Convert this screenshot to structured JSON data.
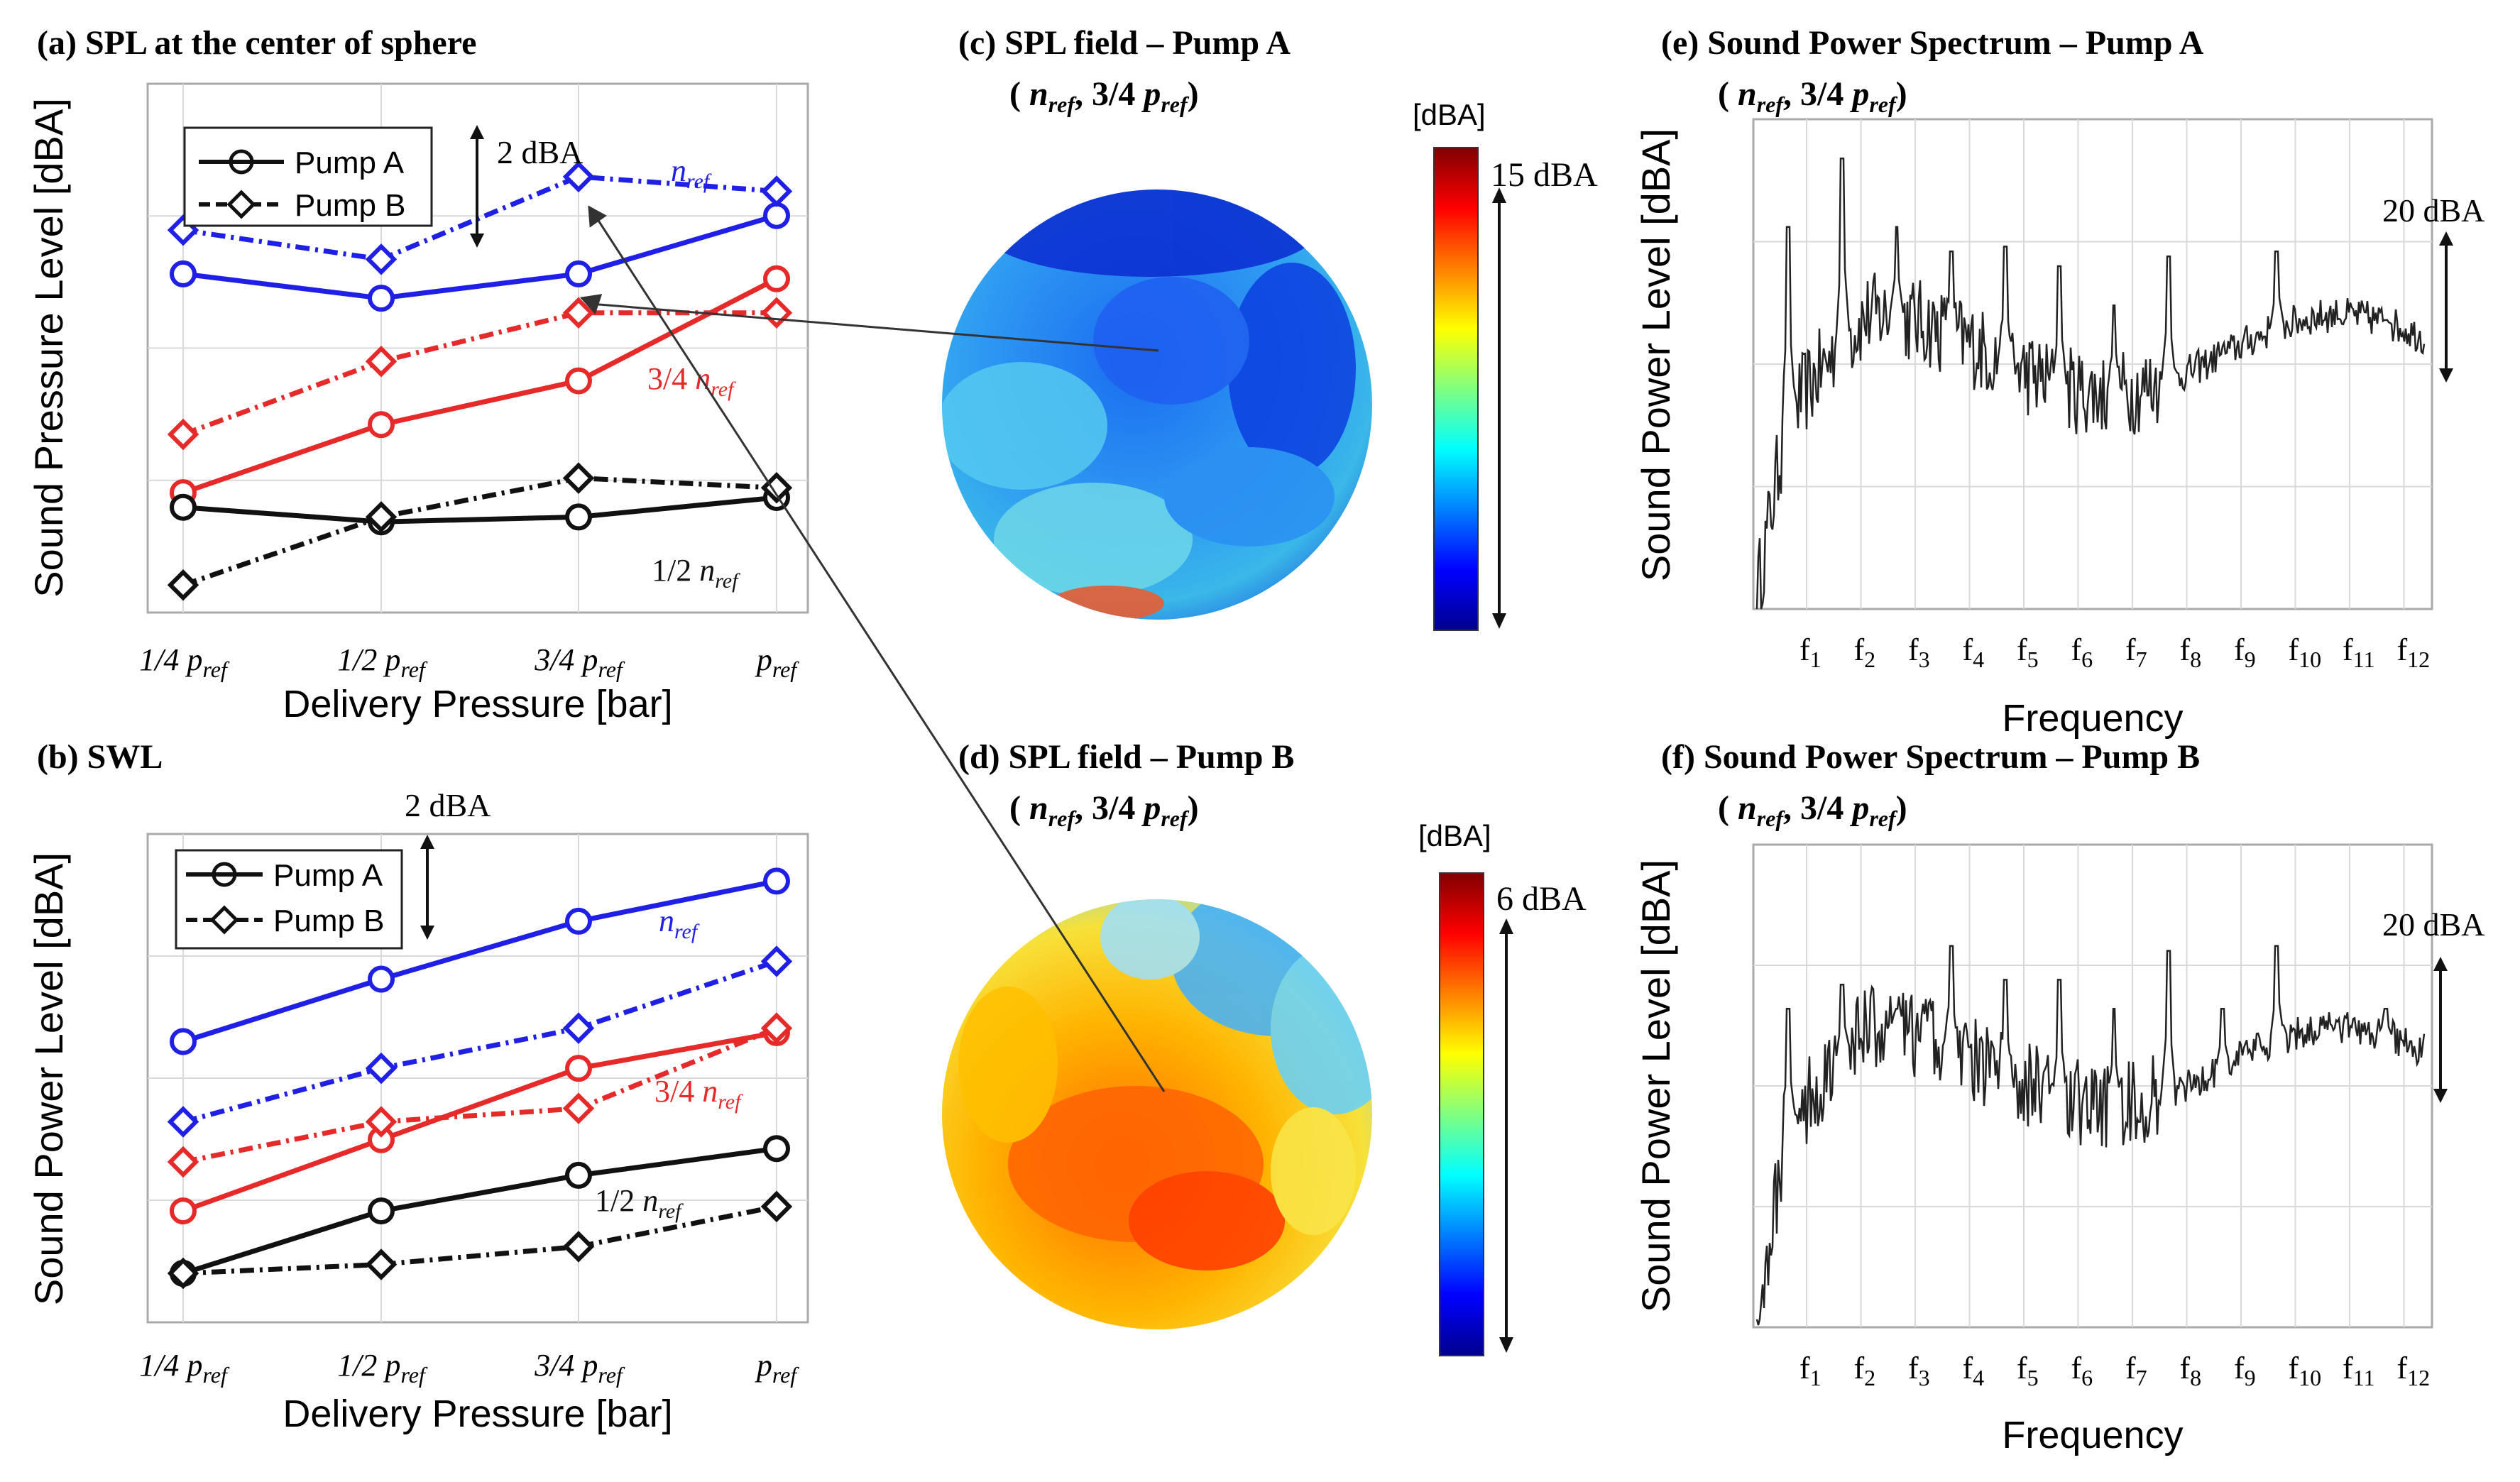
{
  "panels": {
    "a": {
      "title": "(a) SPL at the center of sphere",
      "ylabel": "Sound Pressure Level [dBA]",
      "xlabel": "Delivery Pressure [bar]",
      "scale_note": "2 dBA"
    },
    "b": {
      "title": "(b) SWL",
      "ylabel": "Sound Power Level [dBA]",
      "xlabel": "Delivery Pressure [bar]",
      "scale_note": "2 dBA"
    },
    "c": {
      "title": "(c) SPL field – Pump A",
      "subtitle": "( n_ref , 3/4 p_ref )",
      "colorbar_unit": "[dBA]",
      "colorbar_range": "15 dBA"
    },
    "d": {
      "title": "(d) SPL field – Pump B",
      "subtitle": "( n_ref , 3/4 p_ref )",
      "colorbar_unit": "[dBA]",
      "colorbar_range": "6 dBA"
    },
    "e": {
      "title": "(e) Sound Power Spectrum – Pump A",
      "subtitle": "( n_ref , 3/4 p_ref )",
      "ylabel": "Sound Power Level [dBA]",
      "xlabel": "Frequency",
      "scale_note": "20 dBA"
    },
    "f": {
      "title": "(f) Sound Power Spectrum – Pump B",
      "subtitle": "( n_ref , 3/4 p_ref )",
      "ylabel": "Sound Power Level [dBA]",
      "xlabel": "Frequency",
      "scale_note": "20 dBA"
    }
  },
  "colors": {
    "n_ref": "#1f1fe6",
    "three_quarter_n_ref": "#e62a2a",
    "half_n_ref": "#111111",
    "spectrum": "#222222",
    "grid": "#d9d9d9"
  },
  "chart_data": [
    {
      "id": "a",
      "type": "line",
      "categories": [
        "1/4 p_ref",
        "1/2 p_ref",
        "3/4 p_ref",
        "p_ref"
      ],
      "ylim": [
        0,
        10
      ],
      "grid": true,
      "legend": {
        "placement": "top-left",
        "entries": [
          "Pump A",
          "Pump B"
        ]
      },
      "annotations": [
        "n_ref",
        "3/4 n_ref",
        "1/2 n_ref"
      ],
      "series": [
        {
          "values": [
            6.6,
            6.1,
            6.6,
            7.8
          ]
        },
        {
          "values": [
            7.5,
            6.9,
            8.6,
            8.3
          ]
        },
        {
          "values": [
            2.1,
            3.5,
            4.4,
            6.5
          ]
        },
        {
          "values": [
            3.3,
            4.8,
            5.8,
            5.8
          ]
        },
        {
          "values": [
            1.8,
            1.5,
            1.6,
            2.0
          ]
        },
        {
          "values": [
            0.2,
            1.6,
            2.4,
            2.2
          ]
        }
      ]
    },
    {
      "id": "b",
      "type": "line",
      "categories": [
        "1/4 p_ref",
        "1/2 p_ref",
        "3/4 p_ref",
        "p_ref"
      ],
      "ylim": [
        0,
        10
      ],
      "grid": true,
      "legend": {
        "placement": "top-left",
        "entries": [
          "Pump A",
          "Pump B"
        ]
      },
      "annotations": [
        "n_ref",
        "3/4 n_ref",
        "1/2 n_ref"
      ],
      "series": [
        {
          "values": [
            5.9,
            7.3,
            8.6,
            9.5
          ]
        },
        {
          "values": [
            4.1,
            5.3,
            6.2,
            7.7
          ]
        },
        {
          "values": [
            2.1,
            3.7,
            5.3,
            6.1
          ]
        },
        {
          "values": [
            3.2,
            4.1,
            4.4,
            6.2
          ]
        },
        {
          "values": [
            0.7,
            2.1,
            2.9,
            3.5
          ]
        },
        {
          "values": [
            0.7,
            0.9,
            1.3,
            2.2
          ]
        }
      ]
    },
    {
      "id": "e",
      "type": "line",
      "x_tick_labels": [
        "f1",
        "f2",
        "f3",
        "f4",
        "f5",
        "f6",
        "f7",
        "f8",
        "f9",
        "f10",
        "f11",
        "f12"
      ],
      "grid": true,
      "harmonic_peaks": [
        0.78,
        0.92,
        0.78,
        0.73,
        0.74,
        0.7,
        0.62,
        0.72,
        0.52,
        0.73,
        0.46,
        0.59
      ],
      "baseline_level": 0.3
    },
    {
      "id": "f",
      "type": "line",
      "x_tick_labels": [
        "f1",
        "f2",
        "f3",
        "f4",
        "f5",
        "f6",
        "f7",
        "f8",
        "f9",
        "f10",
        "f11",
        "f12"
      ],
      "grid": true,
      "harmonic_peaks": [
        0.66,
        0.71,
        0.66,
        0.79,
        0.72,
        0.72,
        0.66,
        0.78,
        0.66,
        0.79,
        0.61,
        0.66
      ],
      "baseline_level": 0.32
    }
  ]
}
